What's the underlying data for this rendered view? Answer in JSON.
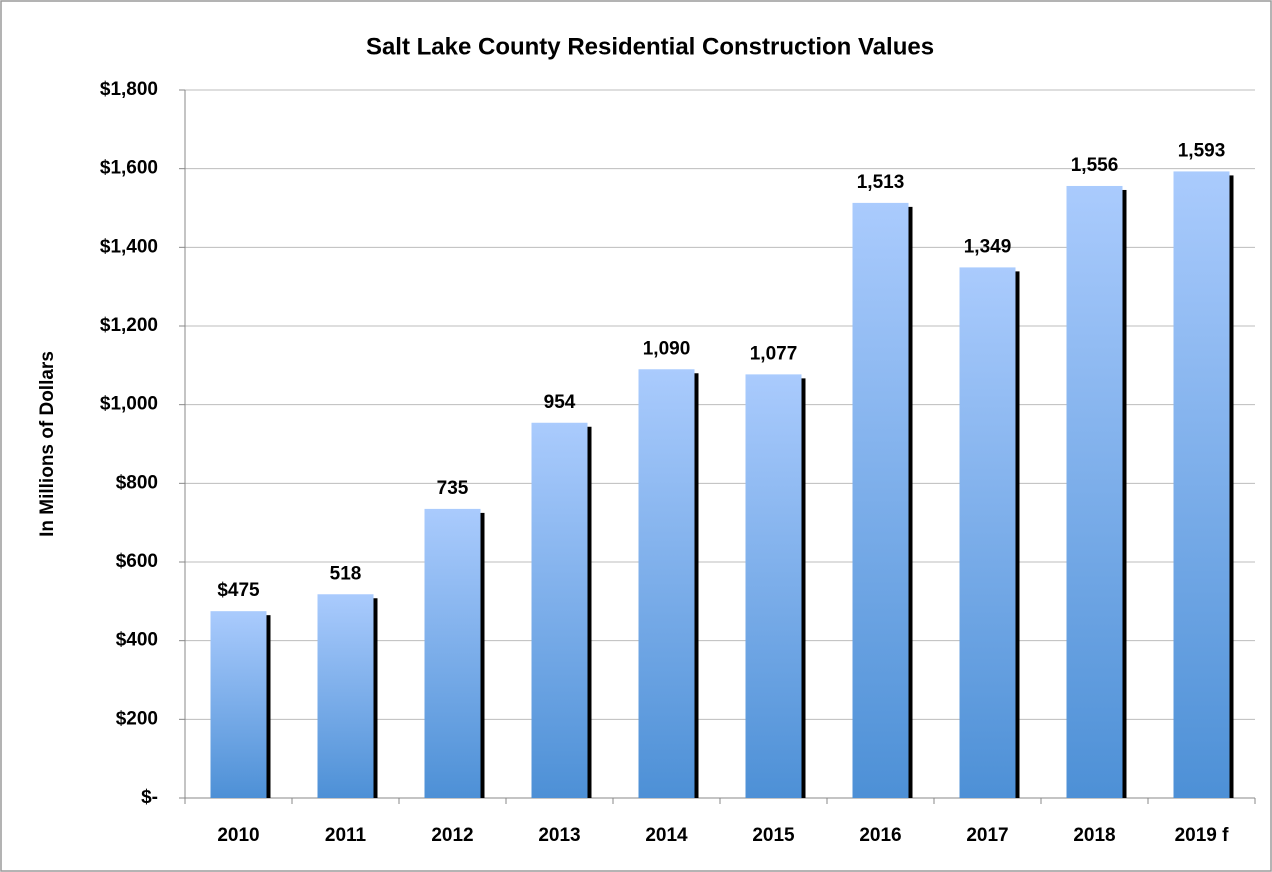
{
  "chart_data": {
    "type": "bar",
    "title": "Salt Lake County Residential Construction Values",
    "y_axis_label": "In Millions of Dollars",
    "categories": [
      "2010",
      "2011",
      "2012",
      "2013",
      "2014",
      "2015",
      "2016",
      "2017",
      "2018",
      "2019 f"
    ],
    "values": [
      475,
      518,
      735,
      954,
      1090,
      1077,
      1513,
      1349,
      1556,
      1593
    ],
    "value_labels": [
      "$475",
      "518",
      "735",
      "954",
      "1,090",
      "1,077",
      "1,513",
      "1,349",
      "1,556",
      "1,593"
    ],
    "color_top": "#aacbfd",
    "color_bottom": "#4d90d6",
    "ylim": [
      0,
      1800
    ],
    "yticks": [
      {
        "value": 0,
        "label": "$-"
      },
      {
        "value": 200,
        "label": "$200"
      },
      {
        "value": 400,
        "label": "$400"
      },
      {
        "value": 600,
        "label": "$600"
      },
      {
        "value": 800,
        "label": "$800"
      },
      {
        "value": 1000,
        "label": "$1,000"
      },
      {
        "value": 1200,
        "label": "$1,200"
      },
      {
        "value": 1400,
        "label": "$1,400"
      },
      {
        "value": 1600,
        "label": "$1,600"
      },
      {
        "value": 1800,
        "label": "$1,800"
      }
    ],
    "grid": true
  }
}
